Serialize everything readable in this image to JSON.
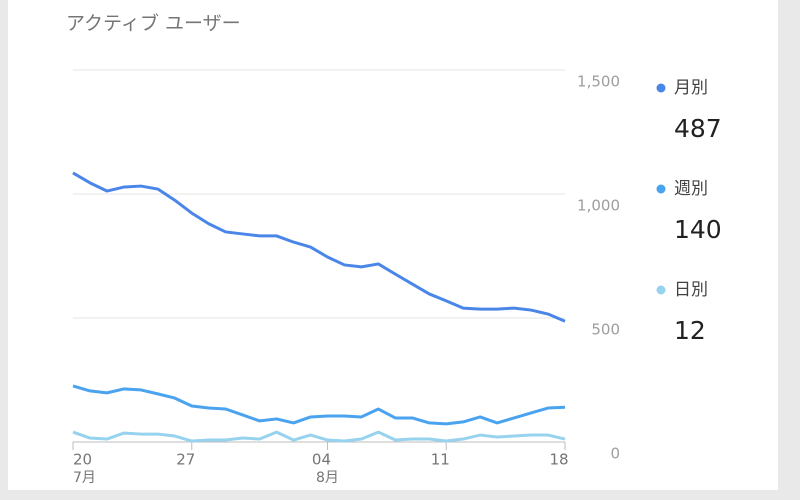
{
  "chart_data": {
    "type": "line",
    "title": "アクティブ ユーザー",
    "categories": [
      "20",
      null,
      null,
      null,
      null,
      null,
      null,
      "27",
      null,
      null,
      null,
      null,
      null,
      null,
      null,
      "04",
      null,
      null,
      null,
      null,
      null,
      null,
      "11",
      null,
      null,
      null,
      null,
      null,
      null,
      "18"
    ],
    "category_groups": [
      "7月",
      null,
      null,
      null,
      null,
      null,
      null,
      null,
      null,
      null,
      null,
      null,
      null,
      null,
      null,
      "8月",
      null,
      null,
      null,
      null,
      null,
      null,
      null,
      null,
      null,
      null,
      null,
      null,
      null,
      null
    ],
    "ylim": [
      0,
      1500
    ],
    "yticks": [
      0,
      500,
      {
        "value": 1000,
        "label": "1,000"
      },
      {
        "value": 1500,
        "label": "1,500"
      }
    ],
    "grid": true,
    "series": [
      {
        "name": "月別",
        "color": "#4a86e8",
        "values": [
          1085,
          1045,
          1012,
          1028,
          1032,
          1020,
          975,
          923,
          880,
          847,
          839,
          831,
          831,
          806,
          786,
          746,
          714,
          706,
          718,
          677,
          637,
          597,
          569,
          540,
          536,
          536,
          540,
          532,
          516,
          487
        ]
      },
      {
        "name": "週別",
        "color": "#4aa3ef",
        "values": [
          226,
          206,
          198,
          214,
          210,
          194,
          177,
          145,
          137,
          133,
          109,
          85,
          93,
          77,
          101,
          105,
          105,
          101,
          133,
          97,
          97,
          77,
          73,
          81,
          101,
          77,
          97,
          117,
          137,
          140
        ]
      },
      {
        "name": "日別",
        "color": "#97d2ef",
        "values": [
          40,
          16,
          12,
          36,
          32,
          32,
          24,
          4,
          8,
          8,
          16,
          12,
          40,
          8,
          28,
          8,
          4,
          12,
          40,
          8,
          12,
          12,
          4,
          12,
          28,
          20,
          24,
          28,
          28,
          12
        ]
      }
    ]
  }
}
